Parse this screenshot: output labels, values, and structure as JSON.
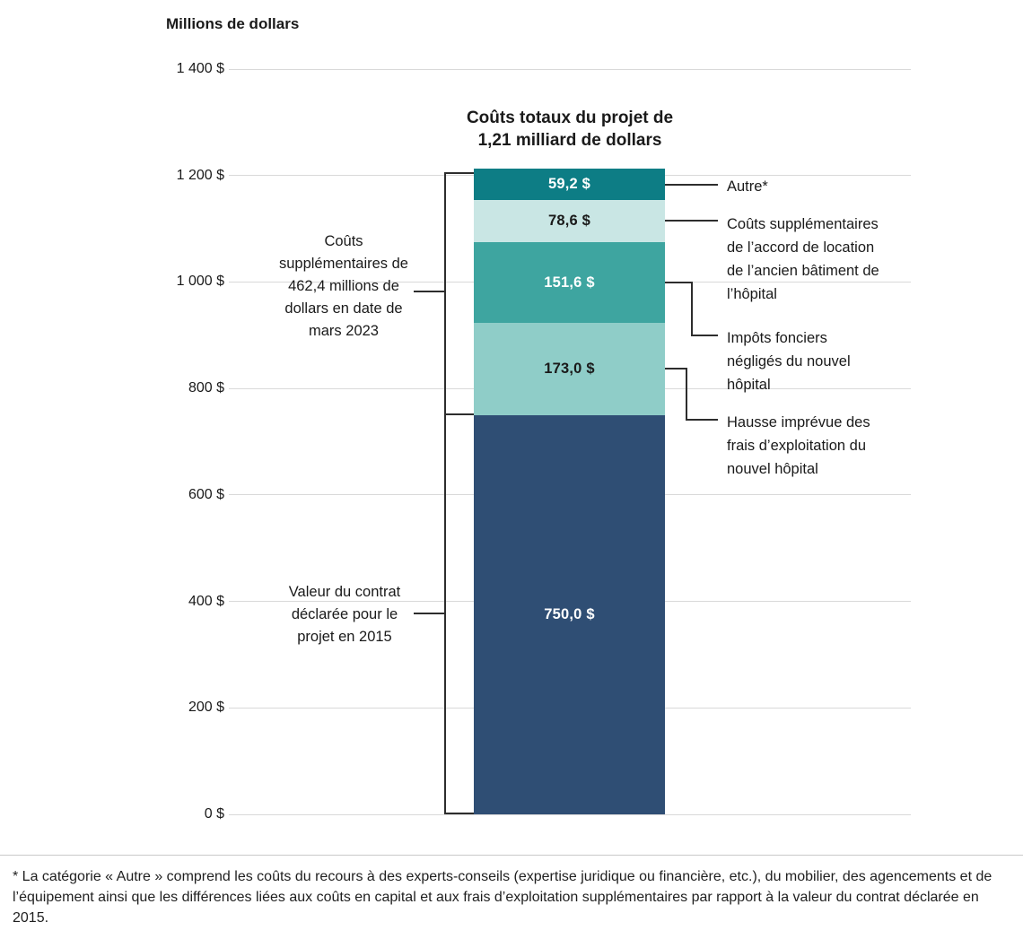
{
  "chart_data": {
    "type": "bar",
    "variant": "single-stacked-bar",
    "title": "Coûts totaux du projet de 1,21 milliard de dollars",
    "ylabel": "Millions de dollars",
    "unit": "millions de dollars ($)",
    "ylim": [
      0,
      1400
    ],
    "grid": true,
    "total_millions": 1212.4,
    "additional_costs_millions": 462.4,
    "contract_value_millions": 750.0,
    "yticks": [
      {
        "value": 1400,
        "label": "1 400 $"
      },
      {
        "value": 1200,
        "label": "1 200 $"
      },
      {
        "value": 1000,
        "label": "1 000 $"
      },
      {
        "value": 800,
        "label": "800 $"
      },
      {
        "value": 600,
        "label": "600 $"
      },
      {
        "value": 400,
        "label": "400 $"
      },
      {
        "value": 200,
        "label": "200 $"
      },
      {
        "value": 0,
        "label": "0 $"
      }
    ],
    "segments": [
      {
        "id": "valeur-contrat",
        "name": "Valeur du contrat déclarée pour le projet en 2015",
        "value": 750.0,
        "label": "750,0 $",
        "color": "#2F4E74",
        "label_color": "#FFFFFF"
      },
      {
        "id": "hausse-frais-exploitation",
        "name": "Hausse imprévue des frais d’exploitation du nouvel hôpital",
        "value": 173.0,
        "label": "173,0 $",
        "color": "#8FCDC8",
        "label_color": "#1A1A1A"
      },
      {
        "id": "impots-fonciers",
        "name": "Impôts fonciers négligés du nouvel hôpital",
        "value": 151.6,
        "label": "151,6 $",
        "color": "#3EA5A0",
        "label_color": "#FFFFFF"
      },
      {
        "id": "location-ancien-batiment",
        "name": "Coûts supplémentaires de l’accord de location de l’ancien bâtiment de l’hôpital",
        "value": 78.6,
        "label": "78,6 $",
        "color": "#C9E6E4",
        "label_color": "#1A1A1A"
      },
      {
        "id": "autre",
        "name": "Autre*",
        "value": 59.2,
        "label": "59,2 $",
        "color": "#0D7D85",
        "label_color": "#FFFFFF"
      }
    ],
    "annotations": {
      "left_top": "Coûts supplémentaires de 462,4 millions de dollars en date de mars 2023",
      "left_bottom": "Valeur du contrat déclarée pour le projet en 2015",
      "right_autre": "Autre*",
      "right_location": "Coûts supplémentaires de l’accord de location de l’ancien bâtiment de l’hôpital",
      "right_impots": "Impôts fonciers négligés du nouvel hôpital",
      "right_hausse": "Hausse imprévue des frais d’exploitation du nouvel hôpital"
    }
  },
  "footnote": "* La catégorie « Autre » comprend les coûts du recours à des experts-conseils (expertise juridique ou financière, etc.), du mobilier, des agencements et de l’équipement ainsi que les différences liées aux coûts en capital et aux frais d’exploitation supplémentaires par rapport à la valeur du contrat déclarée en 2015."
}
